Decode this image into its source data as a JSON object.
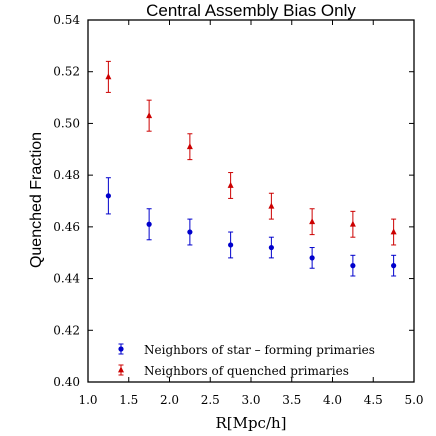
{
  "chart_data": {
    "type": "scatter",
    "title": "Central Assembly Bias Only",
    "xlabel": "R[Mpc/h]",
    "ylabel": "Quenched Fraction",
    "xlim": [
      1.0,
      5.0
    ],
    "ylim": [
      0.4,
      0.54
    ],
    "xticks": [
      "1.0",
      "1.5",
      "2.0",
      "2.5",
      "3.0",
      "3.5",
      "4.0",
      "4.5",
      "5.0"
    ],
    "yticks": [
      "0.40",
      "0.42",
      "0.44",
      "0.46",
      "0.48",
      "0.50",
      "0.52",
      "0.54"
    ],
    "legend_position": "bottom-right",
    "series": [
      {
        "name": "Neighbors of star – forming primaries",
        "color": "#0000cc",
        "marker": "circle",
        "points": [
          {
            "x": 1.25,
            "y": 0.472,
            "err": 0.007
          },
          {
            "x": 1.75,
            "y": 0.461,
            "err": 0.006
          },
          {
            "x": 2.25,
            "y": 0.458,
            "err": 0.005
          },
          {
            "x": 2.75,
            "y": 0.453,
            "err": 0.005
          },
          {
            "x": 3.25,
            "y": 0.452,
            "err": 0.004
          },
          {
            "x": 3.75,
            "y": 0.448,
            "err": 0.004
          },
          {
            "x": 4.25,
            "y": 0.445,
            "err": 0.004
          },
          {
            "x": 4.75,
            "y": 0.445,
            "err": 0.004
          }
        ]
      },
      {
        "name": "Neighbors of quenched primaries",
        "color": "#cc0000",
        "marker": "triangle",
        "points": [
          {
            "x": 1.25,
            "y": 0.518,
            "err": 0.006
          },
          {
            "x": 1.75,
            "y": 0.503,
            "err": 0.006
          },
          {
            "x": 2.25,
            "y": 0.491,
            "err": 0.005
          },
          {
            "x": 2.75,
            "y": 0.476,
            "err": 0.005
          },
          {
            "x": 3.25,
            "y": 0.468,
            "err": 0.005
          },
          {
            "x": 3.75,
            "y": 0.462,
            "err": 0.005
          },
          {
            "x": 4.25,
            "y": 0.461,
            "err": 0.005
          },
          {
            "x": 4.75,
            "y": 0.458,
            "err": 0.005
          }
        ]
      }
    ]
  }
}
